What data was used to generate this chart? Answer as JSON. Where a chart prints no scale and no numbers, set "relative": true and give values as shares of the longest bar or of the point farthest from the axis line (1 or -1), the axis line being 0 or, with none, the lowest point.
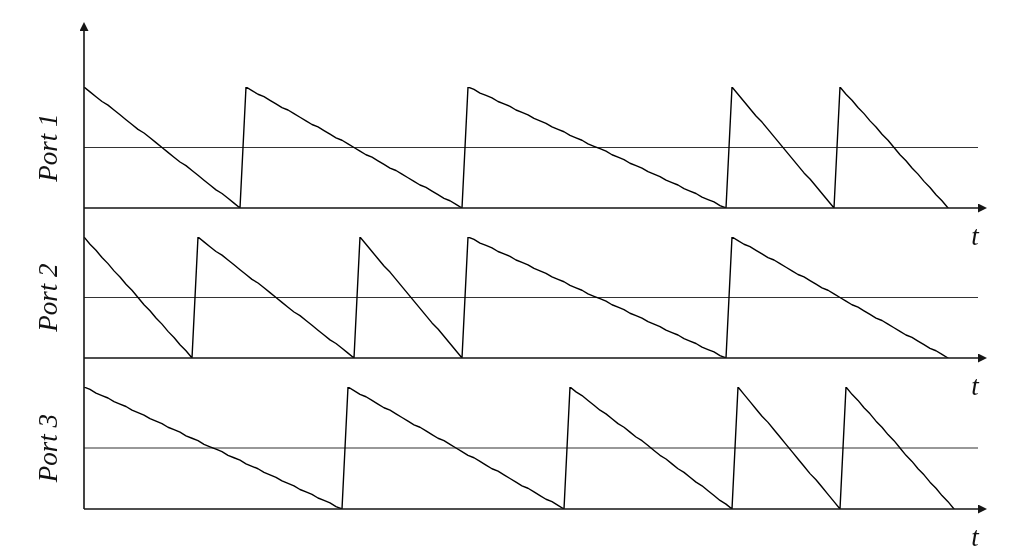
{
  "chart_data": [
    {
      "type": "line",
      "relative": true,
      "ylabel": "Port 1",
      "xlabel": "t",
      "marker": "none",
      "line_style": "solid",
      "color": "#000000",
      "categories": [
        null,
        null,
        null,
        null,
        null,
        null,
        null,
        null,
        null,
        null,
        null,
        null,
        null,
        null,
        null,
        null,
        null,
        null,
        null,
        null,
        null,
        null,
        null,
        null,
        null,
        null,
        null,
        null,
        null,
        null,
        null,
        null,
        null,
        null,
        null,
        null,
        null,
        null,
        null,
        null,
        null,
        null,
        null,
        null,
        null,
        null,
        null,
        null,
        null,
        null,
        null,
        null,
        null,
        null,
        null,
        null,
        null,
        null,
        null,
        null,
        null,
        null,
        null,
        null,
        null,
        null,
        null,
        null,
        null,
        null,
        null,
        null,
        null,
        null,
        null,
        null,
        null,
        null,
        null,
        null,
        null,
        null,
        null,
        null,
        null,
        null,
        null,
        null,
        null,
        null,
        null,
        null,
        null,
        null,
        null,
        null,
        null,
        null,
        null,
        null,
        null,
        null,
        null,
        null,
        null,
        null,
        null,
        null,
        null,
        null,
        null,
        null,
        null,
        null,
        null,
        null,
        null,
        null,
        null,
        null,
        null,
        null,
        null,
        null,
        null,
        null,
        null,
        null,
        null,
        null,
        null,
        null,
        null,
        null,
        null,
        null,
        null,
        null,
        null,
        null,
        null,
        null,
        null,
        null,
        null,
        null,
        null,
        null,
        null,
        null
      ],
      "values": [
        1,
        0.96,
        0.92,
        0.88,
        0.85,
        0.81,
        0.77,
        0.73,
        0.69,
        0.65,
        0.62,
        0.58,
        0.54,
        0.5,
        0.46,
        0.42,
        0.38,
        0.35,
        0.31,
        0.27,
        0.23,
        0.19,
        0.15,
        0.12,
        0.08,
        0.04,
        0,
        1,
        0.97,
        0.94,
        0.92,
        0.89,
        0.86,
        0.83,
        0.81,
        0.78,
        0.75,
        0.72,
        0.69,
        0.67,
        0.64,
        0.61,
        0.58,
        0.56,
        0.53,
        0.5,
        0.47,
        0.44,
        0.42,
        0.39,
        0.36,
        0.33,
        0.31,
        0.28,
        0.25,
        0.22,
        0.19,
        0.17,
        0.14,
        0.11,
        0.08,
        0.06,
        0.03,
        0,
        1,
        0.98,
        0.95,
        0.93,
        0.91,
        0.88,
        0.86,
        0.84,
        0.81,
        0.79,
        0.77,
        0.74,
        0.72,
        0.7,
        0.67,
        0.65,
        0.63,
        0.6,
        0.58,
        0.56,
        0.53,
        0.51,
        0.49,
        0.47,
        0.44,
        0.42,
        0.4,
        0.37,
        0.35,
        0.33,
        0.3,
        0.28,
        0.26,
        0.23,
        0.21,
        0.19,
        0.16,
        0.14,
        0.12,
        0.09,
        0.07,
        0.05,
        0.02,
        0,
        1,
        0.94,
        0.88,
        0.82,
        0.76,
        0.71,
        0.65,
        0.59,
        0.53,
        0.47,
        0.41,
        0.35,
        0.29,
        0.24,
        0.18,
        0.12,
        0.06,
        0,
        1,
        0.94,
        0.89,
        0.83,
        0.78,
        0.72,
        0.67,
        0.61,
        0.56,
        0.5,
        0.44,
        0.39,
        0.33,
        0.28,
        0.22,
        0.17,
        0.11,
        0.06,
        0,
        null,
        null,
        null,
        null,
        null
      ],
      "ref_lines": [
        {
          "axis": "y",
          "value": 0.5,
          "color": "#333333"
        }
      ]
    },
    {
      "type": "line",
      "relative": true,
      "ylabel": "Port 2",
      "xlabel": "t",
      "marker": "none",
      "line_style": "solid",
      "color": "#000000",
      "categories": [
        null,
        null,
        null,
        null,
        null,
        null,
        null,
        null,
        null,
        null,
        null,
        null,
        null,
        null,
        null,
        null,
        null,
        null,
        null,
        null,
        null,
        null,
        null,
        null,
        null,
        null,
        null,
        null,
        null,
        null,
        null,
        null,
        null,
        null,
        null,
        null,
        null,
        null,
        null,
        null,
        null,
        null,
        null,
        null,
        null,
        null,
        null,
        null,
        null,
        null,
        null,
        null,
        null,
        null,
        null,
        null,
        null,
        null,
        null,
        null,
        null,
        null,
        null,
        null,
        null,
        null,
        null,
        null,
        null,
        null,
        null,
        null,
        null,
        null,
        null,
        null,
        null,
        null,
        null,
        null,
        null,
        null,
        null,
        null,
        null,
        null,
        null,
        null,
        null,
        null,
        null,
        null,
        null,
        null,
        null,
        null,
        null,
        null,
        null,
        null,
        null,
        null,
        null,
        null,
        null,
        null,
        null,
        null,
        null,
        null,
        null,
        null,
        null,
        null,
        null,
        null,
        null,
        null,
        null,
        null,
        null,
        null,
        null,
        null,
        null,
        null,
        null,
        null,
        null,
        null,
        null,
        null,
        null,
        null,
        null,
        null,
        null,
        null,
        null,
        null,
        null,
        null,
        null,
        null,
        null,
        null,
        null,
        null,
        null,
        null
      ],
      "values": [
        1,
        0.94,
        0.89,
        0.83,
        0.78,
        0.72,
        0.67,
        0.61,
        0.56,
        0.5,
        0.44,
        0.39,
        0.33,
        0.28,
        0.22,
        0.17,
        0.11,
        0.06,
        0,
        1,
        0.96,
        0.92,
        0.88,
        0.85,
        0.81,
        0.77,
        0.73,
        0.69,
        0.65,
        0.62,
        0.58,
        0.54,
        0.5,
        0.46,
        0.42,
        0.38,
        0.35,
        0.31,
        0.27,
        0.23,
        0.19,
        0.15,
        0.12,
        0.08,
        0.04,
        0,
        1,
        0.94,
        0.88,
        0.82,
        0.76,
        0.71,
        0.65,
        0.59,
        0.53,
        0.47,
        0.41,
        0.35,
        0.29,
        0.24,
        0.18,
        0.12,
        0.06,
        0,
        1,
        0.98,
        0.95,
        0.93,
        0.91,
        0.88,
        0.86,
        0.84,
        0.81,
        0.79,
        0.77,
        0.74,
        0.72,
        0.7,
        0.67,
        0.65,
        0.63,
        0.6,
        0.58,
        0.56,
        0.53,
        0.51,
        0.49,
        0.47,
        0.44,
        0.42,
        0.4,
        0.37,
        0.35,
        0.33,
        0.3,
        0.28,
        0.26,
        0.23,
        0.21,
        0.19,
        0.16,
        0.14,
        0.12,
        0.09,
        0.07,
        0.05,
        0.02,
        0,
        1,
        0.97,
        0.94,
        0.92,
        0.89,
        0.86,
        0.83,
        0.81,
        0.78,
        0.75,
        0.72,
        0.69,
        0.67,
        0.64,
        0.61,
        0.58,
        0.56,
        0.53,
        0.5,
        0.47,
        0.44,
        0.42,
        0.39,
        0.36,
        0.33,
        0.31,
        0.28,
        0.25,
        0.22,
        0.19,
        0.17,
        0.14,
        0.11,
        0.08,
        0.06,
        0.03,
        0,
        null,
        null,
        null,
        null,
        null
      ],
      "ref_lines": [
        {
          "axis": "y",
          "value": 0.5,
          "color": "#333333"
        }
      ]
    },
    {
      "type": "line",
      "relative": true,
      "ylabel": "Port 3",
      "xlabel": "t",
      "marker": "none",
      "line_style": "solid",
      "color": "#000000",
      "categories": [
        null,
        null,
        null,
        null,
        null,
        null,
        null,
        null,
        null,
        null,
        null,
        null,
        null,
        null,
        null,
        null,
        null,
        null,
        null,
        null,
        null,
        null,
        null,
        null,
        null,
        null,
        null,
        null,
        null,
        null,
        null,
        null,
        null,
        null,
        null,
        null,
        null,
        null,
        null,
        null,
        null,
        null,
        null,
        null,
        null,
        null,
        null,
        null,
        null,
        null,
        null,
        null,
        null,
        null,
        null,
        null,
        null,
        null,
        null,
        null,
        null,
        null,
        null,
        null,
        null,
        null,
        null,
        null,
        null,
        null,
        null,
        null,
        null,
        null,
        null,
        null,
        null,
        null,
        null,
        null,
        null,
        null,
        null,
        null,
        null,
        null,
        null,
        null,
        null,
        null,
        null,
        null,
        null,
        null,
        null,
        null,
        null,
        null,
        null,
        null,
        null,
        null,
        null,
        null,
        null,
        null,
        null,
        null,
        null,
        null,
        null,
        null,
        null,
        null,
        null,
        null,
        null,
        null,
        null,
        null,
        null,
        null,
        null,
        null,
        null,
        null,
        null,
        null,
        null,
        null,
        null,
        null,
        null,
        null,
        null,
        null,
        null,
        null,
        null,
        null,
        null,
        null,
        null,
        null,
        null,
        null,
        null,
        null,
        null,
        null
      ],
      "values": [
        1,
        0.98,
        0.95,
        0.93,
        0.91,
        0.88,
        0.86,
        0.84,
        0.81,
        0.79,
        0.77,
        0.74,
        0.72,
        0.7,
        0.67,
        0.65,
        0.63,
        0.6,
        0.58,
        0.56,
        0.53,
        0.51,
        0.49,
        0.47,
        0.44,
        0.42,
        0.4,
        0.37,
        0.35,
        0.33,
        0.3,
        0.28,
        0.26,
        0.23,
        0.21,
        0.19,
        0.16,
        0.14,
        0.12,
        0.09,
        0.07,
        0.05,
        0.02,
        0,
        1,
        0.97,
        0.94,
        0.92,
        0.89,
        0.86,
        0.83,
        0.81,
        0.78,
        0.75,
        0.72,
        0.69,
        0.67,
        0.64,
        0.61,
        0.58,
        0.56,
        0.53,
        0.5,
        0.47,
        0.44,
        0.42,
        0.39,
        0.36,
        0.33,
        0.31,
        0.28,
        0.25,
        0.22,
        0.19,
        0.17,
        0.14,
        0.11,
        0.08,
        0.06,
        0.03,
        0,
        1,
        0.96,
        0.93,
        0.89,
        0.85,
        0.81,
        0.78,
        0.74,
        0.7,
        0.67,
        0.63,
        0.59,
        0.56,
        0.52,
        0.48,
        0.44,
        0.41,
        0.37,
        0.33,
        0.3,
        0.26,
        0.22,
        0.19,
        0.15,
        0.11,
        0.07,
        0.04,
        0,
        1,
        0.94,
        0.88,
        0.82,
        0.76,
        0.71,
        0.65,
        0.59,
        0.53,
        0.47,
        0.41,
        0.35,
        0.29,
        0.24,
        0.18,
        0.12,
        0.06,
        0,
        1,
        0.94,
        0.89,
        0.83,
        0.78,
        0.72,
        0.67,
        0.61,
        0.56,
        0.5,
        0.44,
        0.39,
        0.33,
        0.28,
        0.22,
        0.17,
        0.11,
        0.06,
        0,
        null,
        null,
        null,
        null
      ],
      "ref_lines": [
        {
          "axis": "y",
          "value": 0.5,
          "color": "#333333"
        }
      ]
    }
  ]
}
